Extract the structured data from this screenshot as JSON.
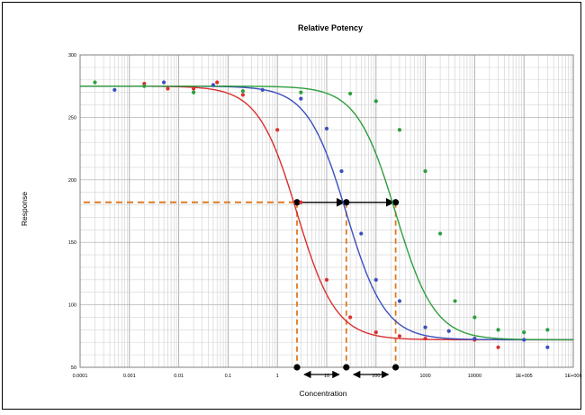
{
  "chart_data": {
    "type": "scatter",
    "title": "Relative Potency",
    "xlabel": "Concentration",
    "ylabel": "Response",
    "x_scale": "log",
    "xlim": [
      0.0001,
      1000000
    ],
    "ylim": [
      50,
      300
    ],
    "grid": "on",
    "x_tick_labels": [
      "0.0001",
      "0.001",
      "0.01",
      "0.1",
      "1",
      "10",
      "100",
      "1000",
      "10000",
      "1E+005",
      "1E+006"
    ],
    "y_tick_labels": [
      "50",
      "100",
      "150",
      "200",
      "250",
      "300"
    ],
    "colors": {
      "red": "#d93030",
      "blue": "#3a4fbf",
      "green": "#2e9e3c",
      "teal": "#2a8a78",
      "purple": "#6a4fb8",
      "annotation": "#e07a20",
      "arrow": "#000000"
    },
    "series": [
      {
        "color": "red",
        "curve": {
          "top": 275,
          "bottom": 72,
          "ec50": 2.5,
          "hill": 1.1
        },
        "points": [
          [
            0.002,
            277
          ],
          [
            0.006,
            273
          ],
          [
            0.02,
            273
          ],
          [
            0.06,
            278
          ],
          [
            0.2,
            268
          ],
          [
            1,
            240
          ],
          [
            3,
            182
          ],
          [
            10,
            120
          ],
          [
            30,
            90
          ],
          [
            100,
            78
          ],
          [
            300,
            75
          ],
          [
            1000,
            73
          ],
          [
            10000,
            72
          ],
          [
            30000,
            66
          ]
        ]
      },
      {
        "color": "blue",
        "curve": {
          "top": 275,
          "bottom": 72,
          "ec50": 25,
          "hill": 1.1
        },
        "points": [
          [
            0.0005,
            272
          ],
          [
            0.005,
            278
          ],
          [
            0.05,
            276
          ],
          [
            0.5,
            272
          ],
          [
            3,
            265
          ],
          [
            10,
            241
          ],
          [
            20,
            207
          ],
          [
            50,
            157
          ],
          [
            100,
            120
          ],
          [
            300,
            103
          ],
          [
            1000,
            82
          ],
          [
            3000,
            79
          ],
          [
            10000,
            73
          ],
          [
            100000,
            72
          ],
          [
            300000,
            66
          ]
        ]
      },
      {
        "color": "green",
        "curve": {
          "top": 275,
          "bottom": 72,
          "ec50": 250,
          "hill": 1.1
        },
        "points": [
          [
            0.0002,
            278
          ],
          [
            0.002,
            275
          ],
          [
            0.02,
            270
          ],
          [
            0.2,
            271
          ],
          [
            3,
            270
          ],
          [
            30,
            269
          ],
          [
            100,
            263
          ],
          [
            300,
            240
          ],
          [
            1000,
            207
          ],
          [
            2000,
            157
          ],
          [
            4000,
            103
          ],
          [
            10000,
            90
          ],
          [
            30000,
            80
          ],
          [
            100000,
            78
          ],
          [
            300000,
            80
          ]
        ]
      }
    ],
    "annotation": {
      "response_level": 182,
      "ec50_markers": [
        2.5,
        25,
        250
      ]
    }
  }
}
